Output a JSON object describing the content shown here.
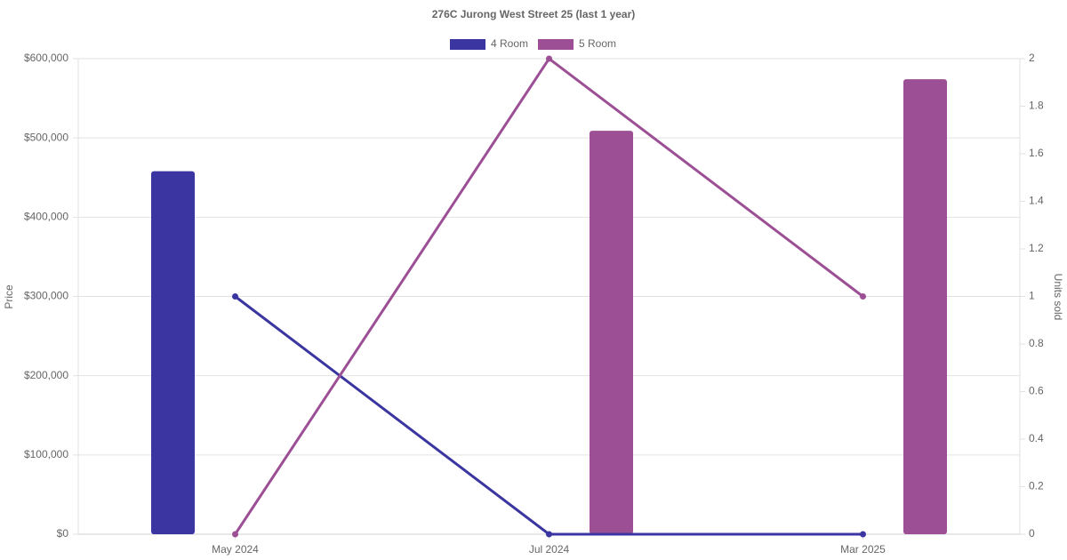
{
  "chart_data": {
    "type": "bar-line",
    "title": "276C Jurong West Street 25 (last 1 year)",
    "y_label": "Price",
    "y2_label": "Units sold",
    "categories": [
      "May 2024",
      "Jul 2024",
      "Mar 2025"
    ],
    "series": [
      {
        "name": "4 Room",
        "color": "#3a35a0",
        "values": [
          458000,
          null,
          null
        ],
        "units": [
          1,
          0,
          0
        ]
      },
      {
        "name": "5 Room",
        "color": "#9c4f94",
        "values": [
          null,
          509000,
          574000
        ],
        "units": [
          0,
          2,
          1
        ]
      }
    ],
    "ylim": [
      0,
      600000
    ],
    "yticks": [
      {
        "value": 0,
        "label": "$0"
      },
      {
        "value": 100000,
        "label": "$100,000"
      },
      {
        "value": 200000,
        "label": "$200,000"
      },
      {
        "value": 300000,
        "label": "$300,000"
      },
      {
        "value": 400000,
        "label": "$400,000"
      },
      {
        "value": 500000,
        "label": "$500,000"
      },
      {
        "value": 600000,
        "label": "$600,000"
      }
    ],
    "y2lim": [
      0,
      2
    ],
    "y2ticks": [
      0,
      0.2,
      0.4,
      0.6,
      0.8,
      1,
      1.2,
      1.4,
      1.6,
      1.8,
      2
    ],
    "grid": true,
    "legend": "top"
  }
}
